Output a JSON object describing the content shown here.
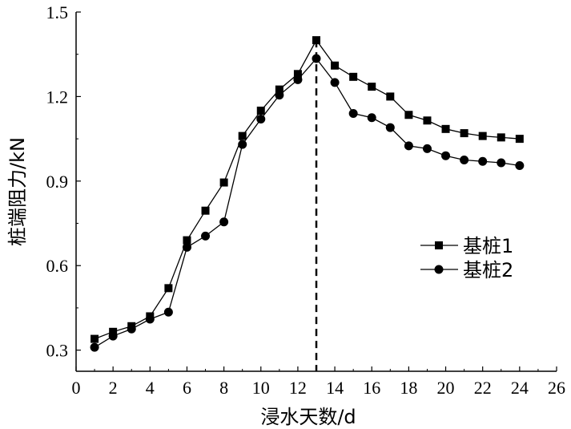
{
  "chart_data": {
    "type": "line",
    "xlabel": "浸水天数/d",
    "ylabel": "桩端阻力/kN",
    "xlim": [
      0,
      26
    ],
    "ylim": [
      0.225,
      1.5
    ],
    "x_ticks": [
      "0",
      "2",
      "4",
      "6",
      "8",
      "10",
      "12",
      "14",
      "16",
      "18",
      "20",
      "22",
      "24",
      "26"
    ],
    "y_ticks": [
      "0.3",
      "0.6",
      "0.9",
      "1.2",
      "1.5"
    ],
    "grid": false,
    "legend_position": "right-middle",
    "reference_line": {
      "x": 13,
      "style": "dashed"
    },
    "series": [
      {
        "name": "基桩1",
        "marker": "square",
        "x": [
          1,
          2,
          3,
          4,
          5,
          6,
          7,
          8,
          9,
          10,
          11,
          12,
          13,
          14,
          15,
          16,
          17,
          18,
          19,
          20,
          21,
          22,
          23,
          24
        ],
        "y": [
          0.34,
          0.365,
          0.385,
          0.42,
          0.52,
          0.69,
          0.795,
          0.895,
          1.06,
          1.15,
          1.225,
          1.28,
          1.4,
          1.31,
          1.27,
          1.235,
          1.2,
          1.135,
          1.115,
          1.085,
          1.07,
          1.06,
          1.055,
          1.05
        ]
      },
      {
        "name": "基桩2",
        "marker": "circle",
        "x": [
          1,
          2,
          3,
          4,
          5,
          6,
          7,
          8,
          9,
          10,
          11,
          12,
          13,
          14,
          15,
          16,
          17,
          18,
          19,
          20,
          21,
          22,
          23,
          24
        ],
        "y": [
          0.31,
          0.35,
          0.375,
          0.41,
          0.435,
          0.665,
          0.705,
          0.755,
          1.03,
          1.12,
          1.205,
          1.26,
          1.335,
          1.25,
          1.14,
          1.125,
          1.09,
          1.025,
          1.015,
          0.99,
          0.975,
          0.97,
          0.965,
          0.955
        ]
      }
    ]
  }
}
